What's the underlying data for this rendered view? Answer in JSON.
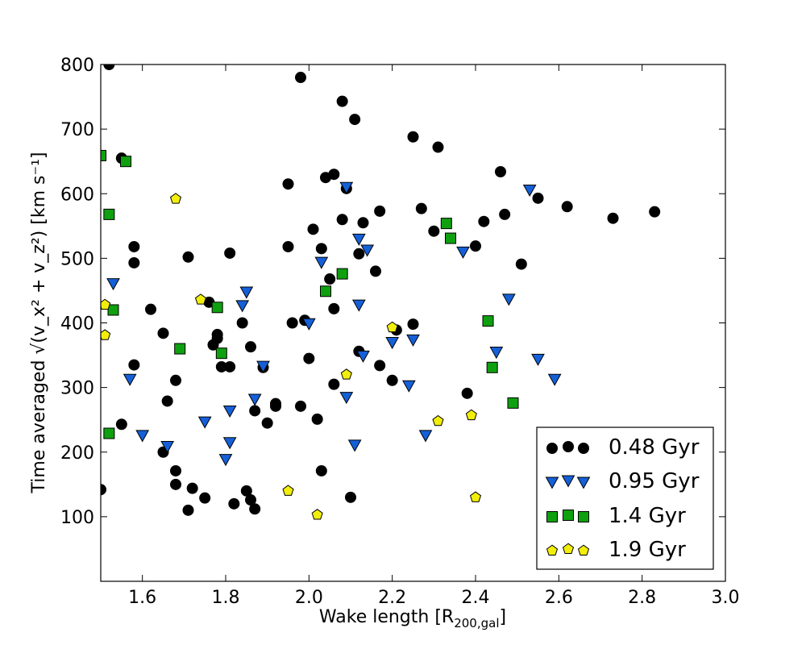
{
  "chart_data": {
    "type": "scatter",
    "title": "",
    "xlabel": "Wake length [R",
    "xlabel_sub": "200,gal",
    "xlabel_end": "]",
    "ylabel": "Time averaged √(v_x² + v_z²)  [km s⁻¹]",
    "xlim": [
      1.5,
      3.0
    ],
    "ylim": [
      0,
      800
    ],
    "xticks": [
      "1.6",
      "1.8",
      "2.0",
      "2.2",
      "2.4",
      "2.6",
      "2.8",
      "3.0"
    ],
    "yticks": [
      "100",
      "200",
      "300",
      "400",
      "500",
      "600",
      "700",
      "800"
    ],
    "legend_position": "lower-right",
    "series": [
      {
        "name": "0.48 Gyr",
        "marker": "circle",
        "color": "#000000",
        "points": [
          [
            1.52,
            800
          ],
          [
            1.55,
            655
          ],
          [
            1.58,
            518
          ],
          [
            1.58,
            493
          ],
          [
            1.71,
            502
          ],
          [
            1.81,
            508
          ],
          [
            1.62,
            421
          ],
          [
            1.65,
            384
          ],
          [
            1.58,
            335
          ],
          [
            1.55,
            243
          ],
          [
            1.66,
            279
          ],
          [
            1.68,
            311
          ],
          [
            1.65,
            200
          ],
          [
            1.68,
            171
          ],
          [
            1.68,
            150
          ],
          [
            1.71,
            110
          ],
          [
            1.72,
            144
          ],
          [
            1.75,
            129
          ],
          [
            1.76,
            432
          ],
          [
            1.77,
            366
          ],
          [
            1.78,
            382
          ],
          [
            1.78,
            376
          ],
          [
            1.79,
            332
          ],
          [
            1.81,
            332
          ],
          [
            1.82,
            120
          ],
          [
            1.84,
            400
          ],
          [
            1.85,
            140
          ],
          [
            1.86,
            126
          ],
          [
            1.86,
            363
          ],
          [
            1.87,
            112
          ],
          [
            1.87,
            264
          ],
          [
            1.89,
            331
          ],
          [
            1.9,
            245
          ],
          [
            1.92,
            271
          ],
          [
            1.92,
            275
          ],
          [
            1.95,
            615
          ],
          [
            1.95,
            518
          ],
          [
            1.96,
            400
          ],
          [
            1.98,
            780
          ],
          [
            1.98,
            271
          ],
          [
            1.99,
            404
          ],
          [
            2.0,
            345
          ],
          [
            2.01,
            545
          ],
          [
            2.02,
            251
          ],
          [
            2.03,
            515
          ],
          [
            2.03,
            171
          ],
          [
            2.04,
            625
          ],
          [
            2.05,
            468
          ],
          [
            2.06,
            630
          ],
          [
            2.06,
            422
          ],
          [
            2.06,
            305
          ],
          [
            2.08,
            743
          ],
          [
            2.08,
            560
          ],
          [
            2.09,
            608
          ],
          [
            2.1,
            130
          ],
          [
            2.11,
            715
          ],
          [
            2.12,
            507
          ],
          [
            2.12,
            356
          ],
          [
            2.13,
            555
          ],
          [
            2.16,
            480
          ],
          [
            2.17,
            573
          ],
          [
            2.17,
            334
          ],
          [
            2.2,
            311
          ],
          [
            2.21,
            389
          ],
          [
            2.25,
            688
          ],
          [
            2.25,
            398
          ],
          [
            2.27,
            577
          ],
          [
            2.3,
            542
          ],
          [
            2.31,
            672
          ],
          [
            2.38,
            291
          ],
          [
            2.4,
            519
          ],
          [
            2.42,
            557
          ],
          [
            2.46,
            634
          ],
          [
            2.47,
            568
          ],
          [
            2.51,
            491
          ],
          [
            2.55,
            593
          ],
          [
            2.62,
            580
          ],
          [
            2.73,
            562
          ],
          [
            2.83,
            572
          ],
          [
            1.5,
            142
          ]
        ]
      },
      {
        "name": "0.95 Gyr",
        "marker": "triangle-down",
        "color": "#1560d8",
        "points": [
          [
            1.53,
            461
          ],
          [
            1.57,
            313
          ],
          [
            1.6,
            226
          ],
          [
            1.66,
            209
          ],
          [
            1.75,
            247
          ],
          [
            1.8,
            189
          ],
          [
            1.81,
            264
          ],
          [
            1.81,
            215
          ],
          [
            1.84,
            427
          ],
          [
            1.85,
            448
          ],
          [
            1.87,
            282
          ],
          [
            1.89,
            333
          ],
          [
            2.0,
            399
          ],
          [
            2.03,
            494
          ],
          [
            2.09,
            610
          ],
          [
            2.09,
            285
          ],
          [
            2.11,
            211
          ],
          [
            2.12,
            428
          ],
          [
            2.12,
            530
          ],
          [
            2.13,
            349
          ],
          [
            2.14,
            513
          ],
          [
            2.2,
            370
          ],
          [
            2.24,
            303
          ],
          [
            2.25,
            374
          ],
          [
            2.28,
            226
          ],
          [
            2.37,
            510
          ],
          [
            2.45,
            355
          ],
          [
            2.48,
            437
          ],
          [
            2.53,
            606
          ],
          [
            2.55,
            344
          ],
          [
            2.59,
            313
          ]
        ]
      },
      {
        "name": "1.4 Gyr",
        "marker": "square",
        "color": "#0fa00f",
        "points": [
          [
            1.5,
            659
          ],
          [
            1.56,
            650
          ],
          [
            1.52,
            568
          ],
          [
            1.53,
            420
          ],
          [
            1.52,
            229
          ],
          [
            1.69,
            360
          ],
          [
            1.78,
            424
          ],
          [
            1.79,
            353
          ],
          [
            2.04,
            449
          ],
          [
            2.08,
            476
          ],
          [
            2.33,
            554
          ],
          [
            2.34,
            531
          ],
          [
            2.43,
            403
          ],
          [
            2.44,
            331
          ],
          [
            2.49,
            276
          ]
        ]
      },
      {
        "name": "1.9 Gyr",
        "marker": "pentagon",
        "color": "#f2ee0c",
        "points": [
          [
            1.51,
            428
          ],
          [
            1.51,
            381
          ],
          [
            1.68,
            592
          ],
          [
            1.74,
            436
          ],
          [
            1.95,
            140
          ],
          [
            2.02,
            103
          ],
          [
            2.09,
            320
          ],
          [
            2.2,
            393
          ],
          [
            2.31,
            248
          ],
          [
            2.39,
            257
          ],
          [
            2.4,
            130
          ]
        ]
      }
    ]
  }
}
